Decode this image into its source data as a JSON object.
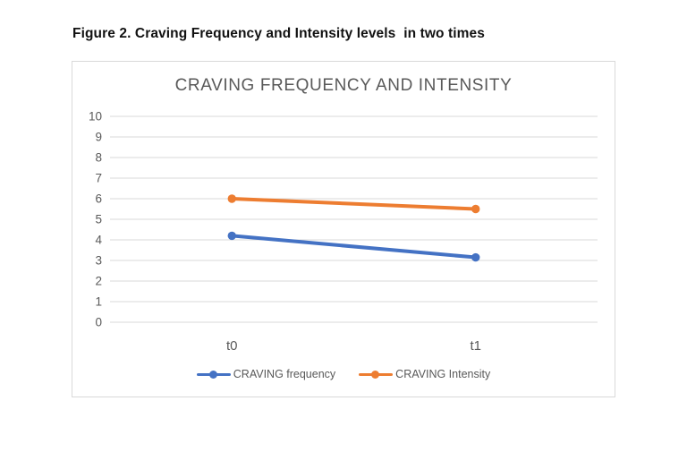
{
  "figure": {
    "caption": "Figure 2. Craving Frequency and Intensity levels  in two times"
  },
  "colors": {
    "background": "#ffffff",
    "chart_border": "#d9d9d9",
    "gridline": "#d9d9d9",
    "axis_text": "#595959",
    "title_text": "#595959",
    "caption_text": "#111111",
    "series_blue": "#4472C4",
    "series_orange": "#ED7D31"
  },
  "chart_data": {
    "type": "line",
    "title": "CRAVING FREQUENCY AND INTENSITY",
    "categories": [
      "t0",
      "t1"
    ],
    "series": [
      {
        "name": "CRAVING frequency",
        "color": "#4472C4",
        "values": [
          4.2,
          3.15
        ]
      },
      {
        "name": "CRAVING Intensity",
        "color": "#ED7D31",
        "values": [
          6.0,
          5.5
        ]
      }
    ],
    "xlabel": "",
    "ylabel": "",
    "ylim": [
      0,
      10
    ],
    "yticks": [
      0,
      1,
      2,
      3,
      4,
      5,
      6,
      7,
      8,
      9,
      10
    ],
    "grid": true,
    "legend_position": "bottom",
    "marker": "circle",
    "line_width": 4
  }
}
